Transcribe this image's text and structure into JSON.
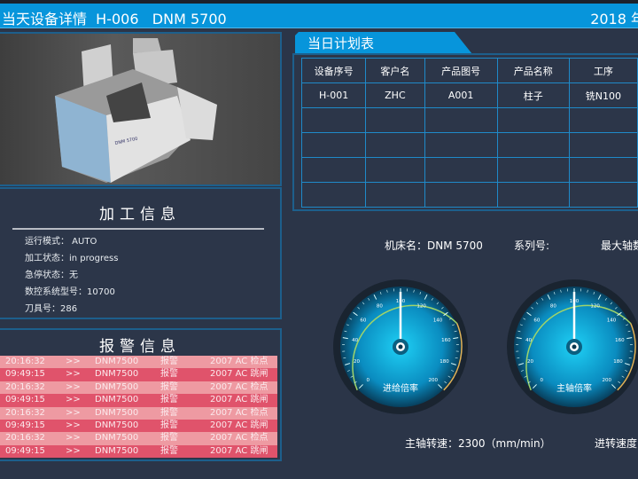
{
  "header": {
    "title": "当天设备详情  H-006   DNM 5700",
    "date": "2018 年"
  },
  "machine_image": {
    "label": "DNM 5700"
  },
  "processing_info": {
    "title": "加工信息",
    "rows": [
      {
        "label": "运行模式：",
        "value": " AUTO"
      },
      {
        "label": "加工状态：",
        "value": "in progress"
      },
      {
        "label": "急停状态：",
        "value": "无"
      },
      {
        "label": "数控系统型号：",
        "value": "10700"
      },
      {
        "label": "刀具号：",
        "value": "286"
      }
    ]
  },
  "alarm_info": {
    "title": "报警信息",
    "rows": [
      {
        "time": "20:16:32",
        "arrow": ">>",
        "machine": "DNM7500",
        "type": "报警",
        "msg": "2007  AC 检点"
      },
      {
        "time": "09:49:15",
        "arrow": ">>",
        "machine": "DNM7500",
        "type": "报警",
        "msg": "2007  AC 跳闸"
      },
      {
        "time": "20:16:32",
        "arrow": ">>",
        "machine": "DNM7500",
        "type": "报警",
        "msg": "2007  AC 检点"
      },
      {
        "time": "09:49:15",
        "arrow": ">>",
        "machine": "DNM7500",
        "type": "报警",
        "msg": "2007  AC 跳闸"
      },
      {
        "time": "20:16:32",
        "arrow": ">>",
        "machine": "DNM7500",
        "type": "报警",
        "msg": "2007  AC 检点"
      },
      {
        "time": "09:49:15",
        "arrow": ">>",
        "machine": "DNM7500",
        "type": "报警",
        "msg": "2007  AC 跳闸"
      },
      {
        "time": "20:16:32",
        "arrow": ">>",
        "machine": "DNM7500",
        "type": "报警",
        "msg": "2007  AC 检点"
      },
      {
        "time": "09:49:15",
        "arrow": ">>",
        "machine": "DNM7500",
        "type": "报警",
        "msg": "2007  AC 跳闸"
      }
    ],
    "colors": {
      "light": "#ee9aa2",
      "dark": "#e0536b"
    }
  },
  "plan": {
    "tab": "当日计划表",
    "columns": [
      "设备序号",
      "客户名",
      "产品图号",
      "产品名称",
      "工序"
    ],
    "rows": [
      [
        "H-001",
        "ZHC",
        "A001",
        "柱子",
        "铣N100"
      ],
      [
        "",
        "",
        "",
        "",
        ""
      ],
      [
        "",
        "",
        "",
        "",
        ""
      ],
      [
        "",
        "",
        "",
        "",
        ""
      ],
      [
        "",
        "",
        "",
        "",
        ""
      ]
    ]
  },
  "machine_meta": {
    "name_label": "机床名：",
    "name_value": "DNM 5700",
    "series_label": "系列号:",
    "max_axes_label": "最大轴数"
  },
  "gauges": [
    {
      "title": "进给倍率",
      "value": 100,
      "min": 0,
      "max": 200,
      "ticks": [
        "0",
        "20",
        "40",
        "60",
        "80",
        "100",
        "120",
        "140",
        "160",
        "180",
        "200"
      ]
    },
    {
      "title": "主轴倍率",
      "value": 100,
      "min": 0,
      "max": 200,
      "ticks": [
        "0",
        "20",
        "40",
        "60",
        "80",
        "100",
        "120",
        "140",
        "160",
        "180",
        "200"
      ]
    }
  ],
  "bottom": {
    "spindle_speed": "主轴转速：2300（mm/min）",
    "feed_speed": "进转速度"
  }
}
